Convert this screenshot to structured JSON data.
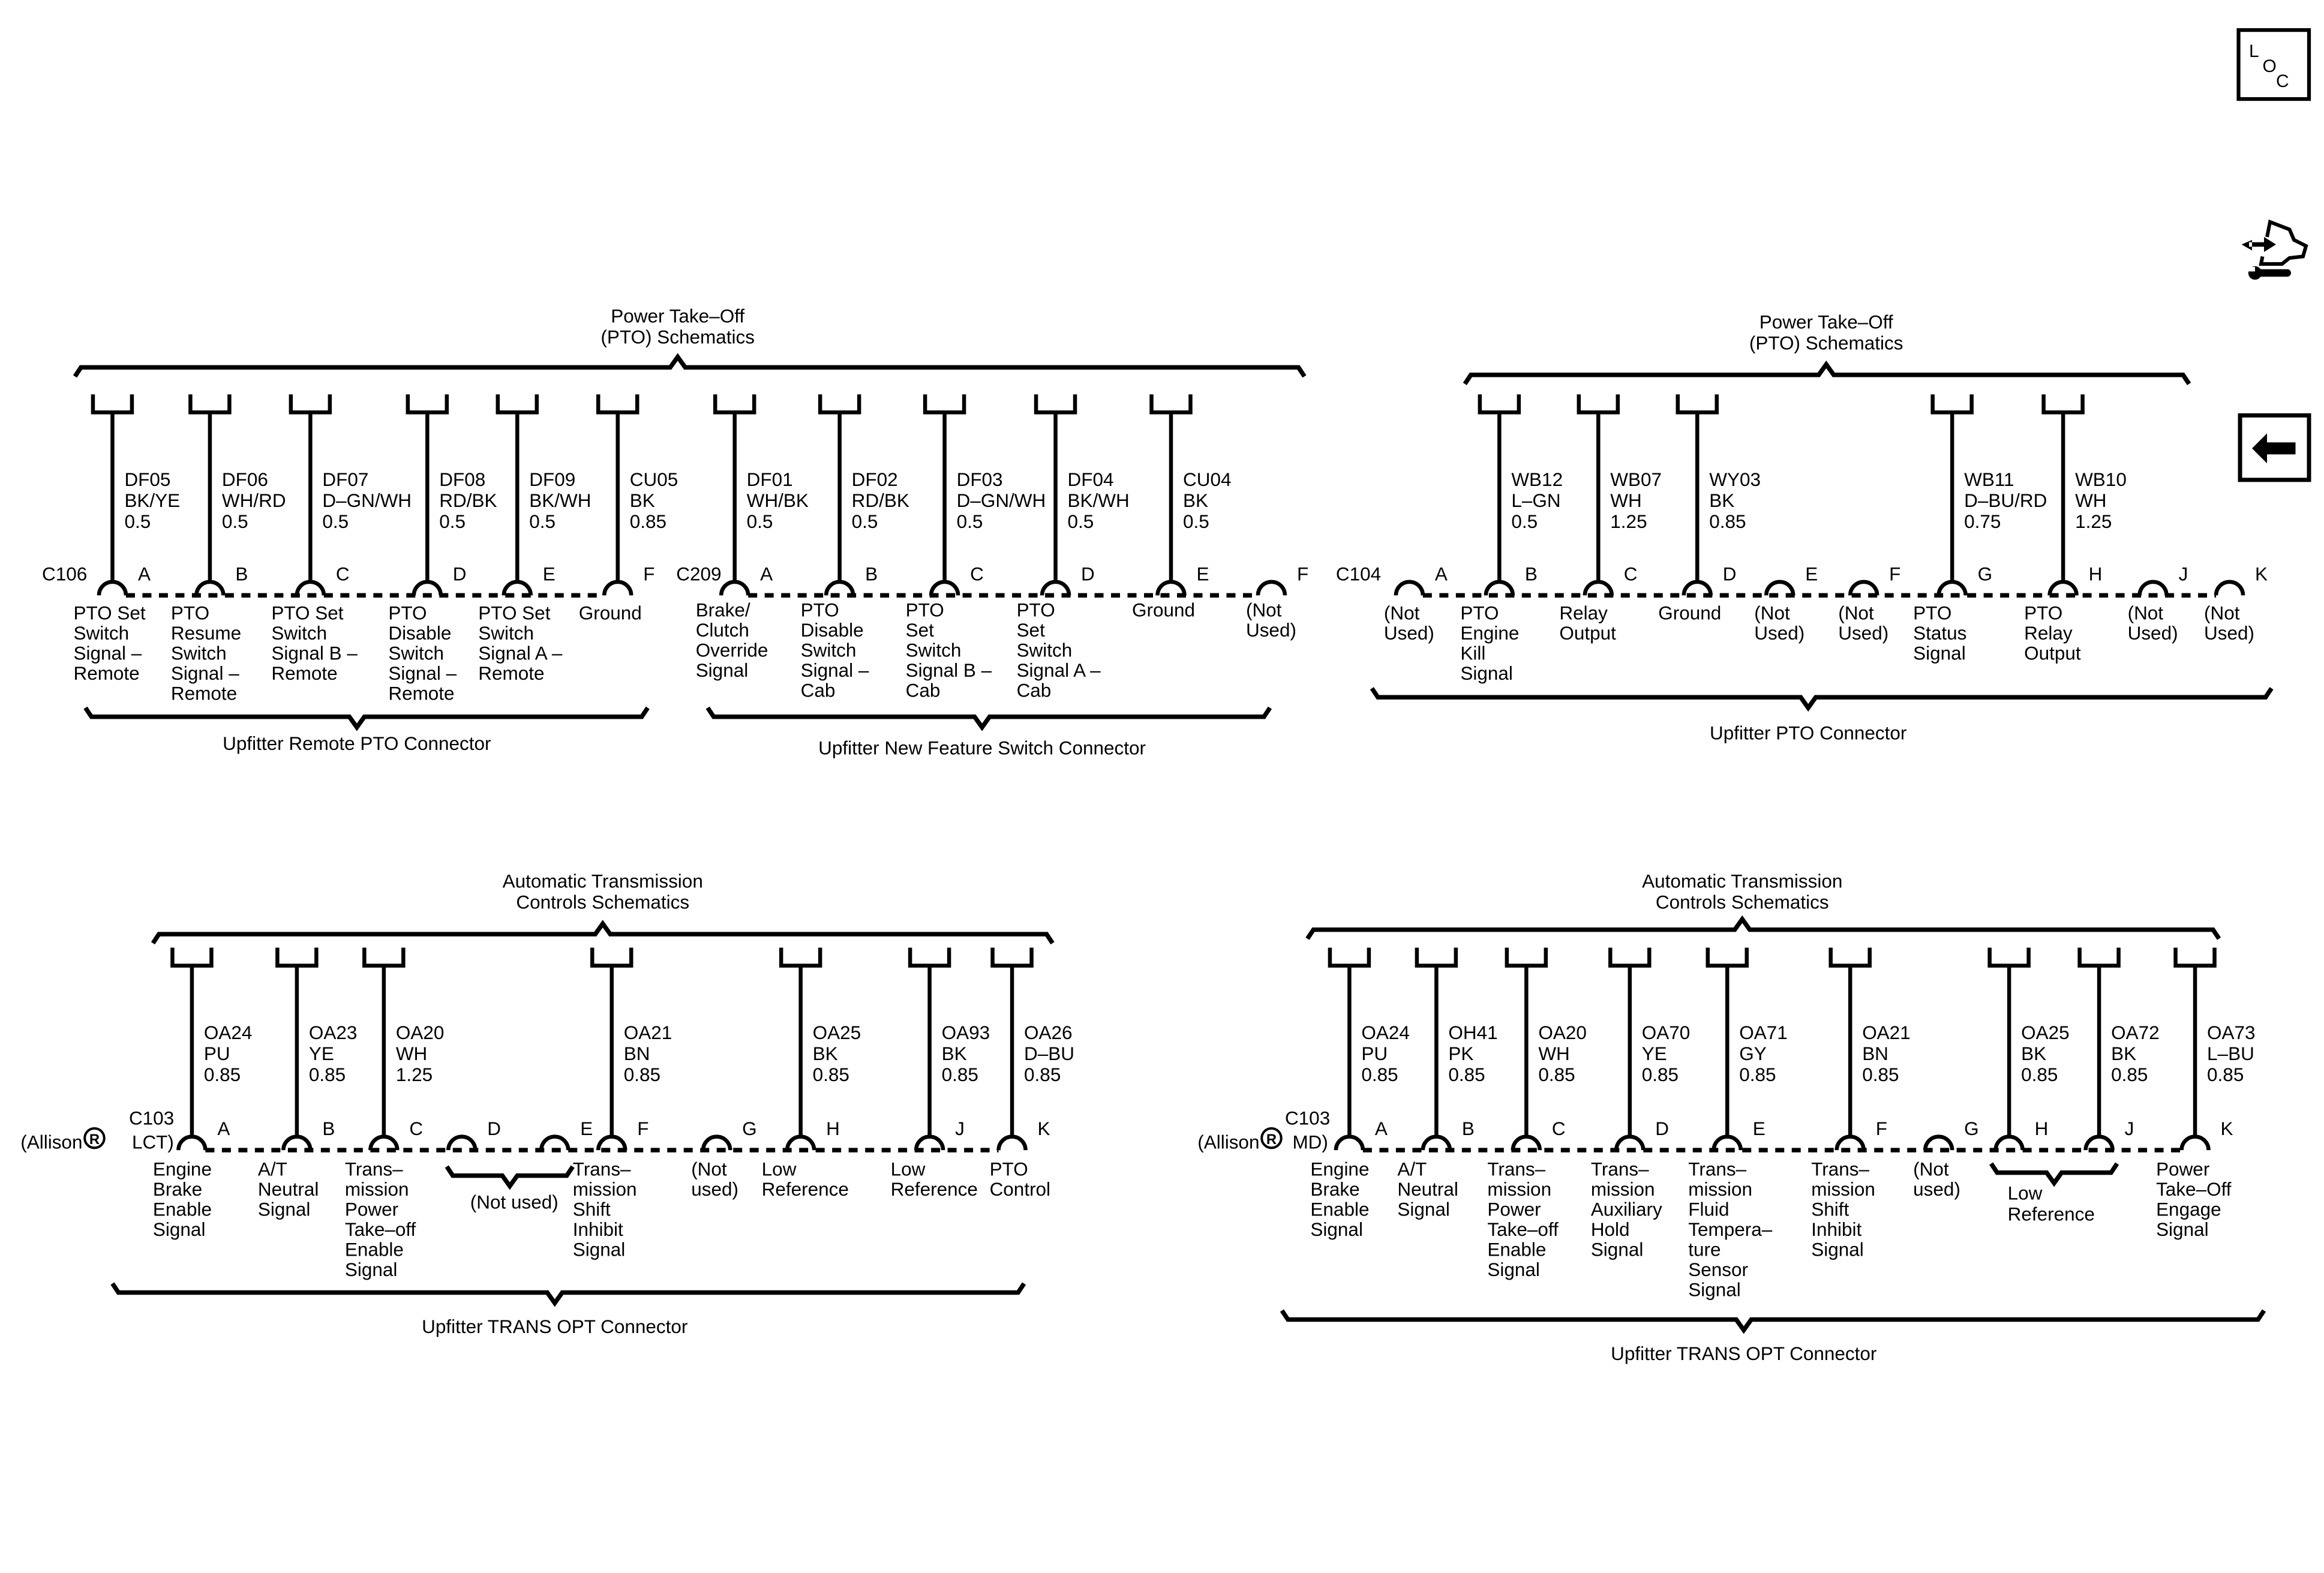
{
  "headers": [
    {
      "title": [
        "Power Take–Off",
        "(PTO) Schematics"
      ]
    },
    {
      "title": [
        "Power Take–Off",
        "(PTO) Schematics"
      ]
    },
    {
      "title": [
        "Automatic Transmission",
        "Controls Schematics"
      ]
    },
    {
      "title": [
        "Automatic Transmission",
        "Controls Schematics"
      ]
    }
  ],
  "connectors": [
    {
      "label": {
        "name": "C106"
      },
      "footer": "Upfitter Remote PTO Connector",
      "pins": [
        {
          "pin": "A",
          "circuit": "DF05",
          "color": "BK/YE",
          "size": "0.5",
          "desc": [
            "PTO Set",
            "Switch",
            "Signal –",
            "Remote"
          ]
        },
        {
          "pin": "B",
          "circuit": "DF06",
          "color": "WH/RD",
          "size": "0.5",
          "desc": [
            "PTO",
            "Resume",
            "Switch",
            "Signal –",
            "Remote"
          ]
        },
        {
          "pin": "C",
          "circuit": "DF07",
          "color": "D–GN/WH",
          "size": "0.5",
          "desc": [
            "PTO Set",
            "Switch",
            "Signal B –",
            "Remote"
          ]
        },
        {
          "pin": "D",
          "circuit": "DF08",
          "color": "RD/BK",
          "size": "0.5",
          "desc": [
            "PTO",
            "Disable",
            "Switch",
            "Signal –",
            "Remote"
          ]
        },
        {
          "pin": "E",
          "circuit": "DF09",
          "color": "BK/WH",
          "size": "0.5",
          "desc": [
            "PTO Set",
            "Switch",
            "Signal A –",
            "Remote"
          ]
        },
        {
          "pin": "F",
          "circuit": "CU05",
          "color": "BK",
          "size": "0.85",
          "desc": [
            "Ground"
          ]
        }
      ]
    },
    {
      "label": {
        "name": "C209"
      },
      "footer": "Upfitter New Feature Switch Connector",
      "pins": [
        {
          "pin": "A",
          "circuit": "DF01",
          "color": "WH/BK",
          "size": "0.5",
          "desc": [
            "Brake/",
            "Clutch",
            "Override",
            "Signal"
          ]
        },
        {
          "pin": "B",
          "circuit": "DF02",
          "color": "RD/BK",
          "size": "0.5",
          "desc": [
            "PTO",
            "Disable",
            "Switch",
            "Signal –",
            "Cab"
          ]
        },
        {
          "pin": "C",
          "circuit": "DF03",
          "color": "D–GN/WH",
          "size": "0.5",
          "desc": [
            "PTO",
            "Set",
            "Switch",
            "Signal B –",
            "Cab"
          ]
        },
        {
          "pin": "D",
          "circuit": "DF04",
          "color": "BK/WH",
          "size": "0.5",
          "desc": [
            "PTO",
            "Set",
            "Switch",
            "Signal A –",
            "Cab"
          ]
        },
        {
          "pin": "E",
          "circuit": "CU04",
          "color": "BK",
          "size": "0.5",
          "desc": [
            "Ground"
          ]
        },
        {
          "pin": "F",
          "desc": [
            "(Not",
            "Used)"
          ]
        }
      ]
    },
    {
      "label": {
        "name": "C104"
      },
      "footer": "Upfitter PTO Connector",
      "pins": [
        {
          "pin": "A",
          "desc": [
            "(Not",
            "Used)"
          ]
        },
        {
          "pin": "B",
          "circuit": "WB12",
          "color": "L–GN",
          "size": "0.5",
          "desc": [
            "PTO",
            "Engine",
            "Kill",
            "Signal"
          ]
        },
        {
          "pin": "C",
          "circuit": "WB07",
          "color": "WH",
          "size": "1.25",
          "desc": [
            "Relay",
            "Output"
          ]
        },
        {
          "pin": "D",
          "circuit": "WY03",
          "color": "BK",
          "size": "0.85",
          "desc": [
            "Ground"
          ]
        },
        {
          "pin": "E",
          "desc": [
            "(Not",
            "Used)"
          ]
        },
        {
          "pin": "F",
          "desc": [
            "(Not",
            "Used)"
          ]
        },
        {
          "pin": "G",
          "circuit": "WB11",
          "color": "D–BU/RD",
          "size": "0.75",
          "desc": [
            "PTO",
            "Status",
            "Signal"
          ]
        },
        {
          "pin": "H",
          "circuit": "WB10",
          "color": "WH",
          "size": "1.25",
          "desc": [
            "PTO",
            "Relay",
            "Output"
          ]
        },
        {
          "pin": "J",
          "desc": [
            "(Not",
            "Used)"
          ]
        },
        {
          "pin": "K",
          "desc": [
            "(Not",
            "Used)"
          ]
        }
      ]
    },
    {
      "label": {
        "name": "C103",
        "brand": "(Allison",
        "mark": "R",
        "variant": "LCT)"
      },
      "footer": "Upfitter TRANS OPT Connector",
      "group_note": [
        "(Not used)"
      ],
      "pins": [
        {
          "pin": "A",
          "circuit": "OA24",
          "color": "PU",
          "size": "0.85",
          "desc": [
            "Engine",
            "Brake",
            "Enable",
            "Signal"
          ]
        },
        {
          "pin": "B",
          "circuit": "OA23",
          "color": "YE",
          "size": "0.85",
          "desc": [
            "A/T",
            "Neutral",
            "Signal"
          ]
        },
        {
          "pin": "C",
          "circuit": "OA20",
          "color": "WH",
          "size": "1.25",
          "desc": [
            "Trans–",
            "mission",
            "Power",
            "Take–off",
            "Enable",
            "Signal"
          ]
        },
        {
          "pin": "D",
          "desc": []
        },
        {
          "pin": "E",
          "desc": []
        },
        {
          "pin": "F",
          "circuit": "OA21",
          "color": "BN",
          "size": "0.85",
          "desc": [
            "Trans–",
            "mission",
            "Shift",
            "Inhibit",
            "Signal"
          ]
        },
        {
          "pin": "G",
          "desc": [
            "(Not",
            "used)"
          ]
        },
        {
          "pin": "H",
          "circuit": "OA25",
          "color": "BK",
          "size": "0.85",
          "desc": [
            "Low",
            "Reference"
          ]
        },
        {
          "pin": "J",
          "circuit": "OA93",
          "color": "BK",
          "size": "0.85",
          "desc": [
            "Low",
            "Reference"
          ]
        },
        {
          "pin": "K",
          "circuit": "OA26",
          "color": "D–BU",
          "size": "0.85",
          "desc": [
            "PTO",
            "Control"
          ]
        }
      ]
    },
    {
      "label": {
        "name": "C103",
        "brand": "(Allison",
        "mark": "R",
        "variant": "MD)"
      },
      "footer": "Upfitter TRANS OPT Connector",
      "group_note": [
        "Low",
        "Reference"
      ],
      "pins": [
        {
          "pin": "A",
          "circuit": "OA24",
          "color": "PU",
          "size": "0.85",
          "desc": [
            "Engine",
            "Brake",
            "Enable",
            "Signal"
          ]
        },
        {
          "pin": "B",
          "circuit": "OH41",
          "color": "PK",
          "size": "0.85",
          "desc": [
            "A/T",
            "Neutral",
            "Signal"
          ]
        },
        {
          "pin": "C",
          "circuit": "OA20",
          "color": "WH",
          "size": "0.85",
          "desc": [
            "Trans–",
            "mission",
            "Power",
            "Take–off",
            "Enable",
            "Signal"
          ]
        },
        {
          "pin": "D",
          "circuit": "OA70",
          "color": "YE",
          "size": "0.85",
          "desc": [
            "Trans–",
            "mission",
            "Auxiliary",
            "Hold",
            "Signal"
          ]
        },
        {
          "pin": "E",
          "circuit": "OA71",
          "color": "GY",
          "size": "0.85",
          "desc": [
            "Trans–",
            "mission",
            "Fluid",
            "Tempera–",
            "ture",
            "Sensor",
            "Signal"
          ]
        },
        {
          "pin": "F",
          "circuit": "OA21",
          "color": "BN",
          "size": "0.85",
          "desc": [
            "Trans–",
            "mission",
            "Shift",
            "Inhibit",
            "Signal"
          ]
        },
        {
          "pin": "G",
          "desc": [
            "(Not",
            "used)"
          ]
        },
        {
          "pin": "H",
          "circuit": "OA25",
          "color": "BK",
          "size": "0.85",
          "desc": []
        },
        {
          "pin": "J",
          "circuit": "OA72",
          "color": "BK",
          "size": "0.85",
          "desc": []
        },
        {
          "pin": "K",
          "circuit": "OA73",
          "color": "L–BU",
          "size": "0.85",
          "desc": [
            "Power",
            "Take–Off",
            "Engage",
            "Signal"
          ]
        }
      ]
    }
  ],
  "nav": {
    "loc_label": "LOC",
    "icons": [
      "loc-icon",
      "service-info-icon",
      "back-arrow-icon"
    ]
  }
}
